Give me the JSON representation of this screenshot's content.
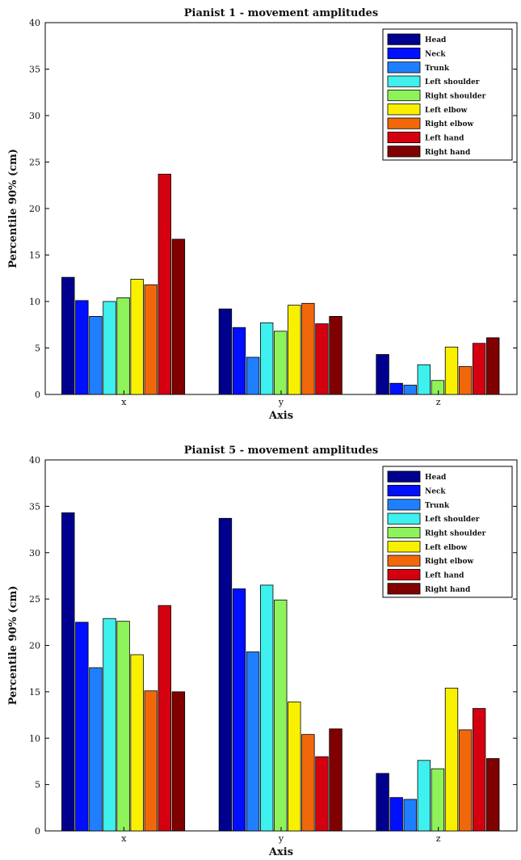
{
  "chart_data": [
    {
      "type": "bar",
      "title": "Pianist 1 - movement amplitudes",
      "xlabel": "Axis",
      "ylabel": "Percentile 90% (cm)",
      "categories": [
        "x",
        "y",
        "z"
      ],
      "ylim": [
        0,
        40
      ],
      "yticks": [
        0,
        5,
        10,
        15,
        20,
        25,
        30,
        35,
        40
      ],
      "legend_position": "top-right",
      "grid": false,
      "series": [
        {
          "name": "Head",
          "color": "#00008f",
          "values": [
            12.6,
            9.2,
            4.3
          ]
        },
        {
          "name": "Neck",
          "color": "#0010ff",
          "values": [
            10.1,
            7.2,
            1.2
          ]
        },
        {
          "name": "Trunk",
          "color": "#1f7fff",
          "values": [
            8.4,
            4.0,
            1.0
          ]
        },
        {
          "name": "Left shoulder",
          "color": "#3ef0ee",
          "values": [
            10.0,
            7.7,
            3.2
          ]
        },
        {
          "name": "Right shoulder",
          "color": "#8ef35a",
          "values": [
            10.4,
            6.8,
            1.5
          ]
        },
        {
          "name": "Left elbow",
          "color": "#f9f000",
          "values": [
            12.4,
            9.6,
            5.1
          ]
        },
        {
          "name": "Right elbow",
          "color": "#f0680a",
          "values": [
            11.8,
            9.8,
            3.0
          ]
        },
        {
          "name": "Left hand",
          "color": "#d4000f",
          "values": [
            23.7,
            7.6,
            5.5
          ]
        },
        {
          "name": "Right hand",
          "color": "#800000",
          "values": [
            16.7,
            8.4,
            6.1
          ]
        }
      ]
    },
    {
      "type": "bar",
      "title": "Pianist 5 - movement amplitudes",
      "xlabel": "Axis",
      "ylabel": "Percentile 90% (cm)",
      "categories": [
        "x",
        "y",
        "z"
      ],
      "ylim": [
        0,
        40
      ],
      "yticks": [
        0,
        5,
        10,
        15,
        20,
        25,
        30,
        35,
        40
      ],
      "legend_position": "top-right",
      "grid": false,
      "series": [
        {
          "name": "Head",
          "color": "#00008f",
          "values": [
            34.3,
            33.7,
            6.2
          ]
        },
        {
          "name": "Neck",
          "color": "#0010ff",
          "values": [
            22.5,
            26.1,
            3.6
          ]
        },
        {
          "name": "Trunk",
          "color": "#1f7fff",
          "values": [
            17.6,
            19.3,
            3.4
          ]
        },
        {
          "name": "Left shoulder",
          "color": "#3ef0ee",
          "values": [
            22.9,
            26.5,
            7.6
          ]
        },
        {
          "name": "Right shoulder",
          "color": "#8ef35a",
          "values": [
            22.6,
            24.9,
            6.7
          ]
        },
        {
          "name": "Left elbow",
          "color": "#f9f000",
          "values": [
            19.0,
            13.9,
            15.4
          ]
        },
        {
          "name": "Right elbow",
          "color": "#f0680a",
          "values": [
            15.1,
            10.4,
            10.9
          ]
        },
        {
          "name": "Left hand",
          "color": "#d4000f",
          "values": [
            24.3,
            8.0,
            13.2
          ]
        },
        {
          "name": "Right hand",
          "color": "#800000",
          "values": [
            15.0,
            11.0,
            7.8
          ]
        }
      ]
    }
  ]
}
